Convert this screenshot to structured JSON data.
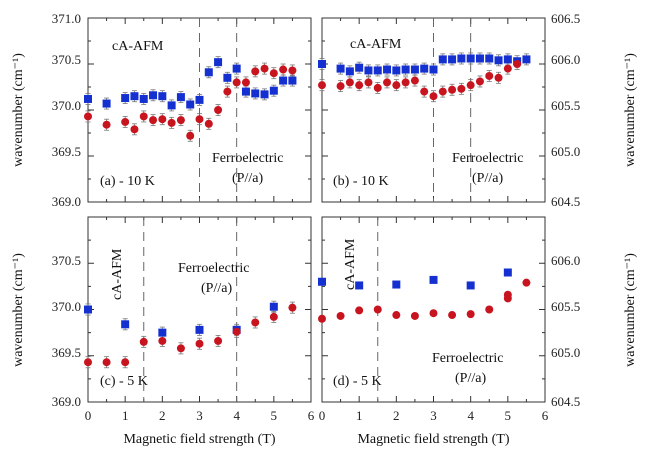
{
  "chart_data": {
    "type": "scatter",
    "xlabel": "Magnetic field strength (T)",
    "ylabel_left": "wavenumber (cm⁻¹)",
    "ylabel_right": "wavenumber (cm⁻¹)",
    "x_ticks": [
      "0",
      "1",
      "2",
      "3",
      "4",
      "5",
      "6"
    ],
    "left_y_ticks": [
      "371.0",
      "370.5",
      "370.0",
      "369.5",
      "369.0"
    ],
    "left_y_ticks_lower": [
      "370.5",
      "370.0",
      "369.5",
      "369.0"
    ],
    "right_y_ticks": [
      "606.5",
      "606.0",
      "605.5",
      "605.0",
      "604.5"
    ],
    "right_y_ticks_lower": [
      "606.0",
      "605.5",
      "605.0",
      "604.5"
    ],
    "colors": {
      "square": "#1530d0",
      "circle": "#c8141e",
      "axis": "#333333",
      "dash": "#666666"
    },
    "panels": [
      {
        "id": "a",
        "label": "(a) - 10 K",
        "xlim": [
          0,
          6
        ],
        "ylim": [
          369.0,
          371.0
        ],
        "annotations": [
          "cA-AFM",
          "Ferroelectric",
          "(P//a)"
        ],
        "dashed_x": [
          3.0,
          4.0
        ],
        "squares": [
          [
            0,
            370.12
          ],
          [
            0.5,
            370.07
          ],
          [
            1,
            370.13
          ],
          [
            1.25,
            370.15
          ],
          [
            1.5,
            370.12
          ],
          [
            1.75,
            370.16
          ],
          [
            2,
            370.15
          ],
          [
            2.25,
            370.05
          ],
          [
            2.5,
            370.14
          ],
          [
            2.75,
            370.06
          ],
          [
            3,
            370.11
          ],
          [
            3.25,
            370.41
          ],
          [
            3.5,
            370.52
          ],
          [
            3.75,
            370.35
          ],
          [
            4,
            370.45
          ],
          [
            4.25,
            370.2
          ],
          [
            4.5,
            370.18
          ],
          [
            4.75,
            370.17
          ],
          [
            5,
            370.21
          ],
          [
            5.25,
            370.32
          ],
          [
            5.5,
            370.32
          ]
        ],
        "circles": [
          [
            0,
            369.93
          ],
          [
            0.5,
            369.84
          ],
          [
            1,
            369.87
          ],
          [
            1.25,
            369.79
          ],
          [
            1.5,
            369.93
          ],
          [
            1.75,
            369.89
          ],
          [
            2,
            369.9
          ],
          [
            2.25,
            369.86
          ],
          [
            2.5,
            369.89
          ],
          [
            2.75,
            369.72
          ],
          [
            3,
            369.9
          ],
          [
            3.25,
            369.85
          ],
          [
            3.5,
            370.0
          ],
          [
            3.75,
            370.2
          ],
          [
            4,
            370.3
          ],
          [
            4.25,
            370.3
          ],
          [
            4.5,
            370.42
          ],
          [
            4.75,
            370.45
          ],
          [
            5,
            370.4
          ],
          [
            5.25,
            370.44
          ],
          [
            5.5,
            370.43
          ]
        ]
      },
      {
        "id": "b",
        "label": "(b) - 10 K",
        "xlim": [
          0,
          6
        ],
        "ylim": [
          604.5,
          606.5
        ],
        "annotations": [
          "cA-AFM",
          "Ferroelectric",
          "(P//a)"
        ],
        "dashed_x": [
          3.0,
          4.0
        ],
        "squares": [
          [
            0,
            606.0
          ],
          [
            0.5,
            605.95
          ],
          [
            0.75,
            605.92
          ],
          [
            1,
            605.96
          ],
          [
            1.25,
            605.93
          ],
          [
            1.5,
            605.93
          ],
          [
            1.75,
            605.94
          ],
          [
            2,
            605.93
          ],
          [
            2.25,
            605.94
          ],
          [
            2.5,
            605.94
          ],
          [
            2.75,
            605.95
          ],
          [
            3,
            605.94
          ],
          [
            3.25,
            606.05
          ],
          [
            3.5,
            606.05
          ],
          [
            3.75,
            606.06
          ],
          [
            4,
            606.06
          ],
          [
            4.25,
            606.06
          ],
          [
            4.5,
            606.06
          ],
          [
            4.75,
            606.04
          ],
          [
            5,
            606.05
          ],
          [
            5.25,
            606.03
          ],
          [
            5.5,
            606.05
          ]
        ],
        "circles": [
          [
            0,
            605.77
          ],
          [
            0.5,
            605.76
          ],
          [
            0.75,
            605.8
          ],
          [
            1,
            605.77
          ],
          [
            1.25,
            605.8
          ],
          [
            1.5,
            605.74
          ],
          [
            1.75,
            605.8
          ],
          [
            2,
            605.77
          ],
          [
            2.25,
            605.8
          ],
          [
            2.5,
            605.82
          ],
          [
            2.75,
            605.7
          ],
          [
            3,
            605.65
          ],
          [
            3.25,
            605.7
          ],
          [
            3.5,
            605.72
          ],
          [
            3.75,
            605.73
          ],
          [
            4,
            605.77
          ],
          [
            4.25,
            605.81
          ],
          [
            4.5,
            605.87
          ],
          [
            4.75,
            605.85
          ],
          [
            5,
            605.95
          ],
          [
            5.25,
            606.0
          ]
        ]
      },
      {
        "id": "c",
        "label": "(c) - 5 K",
        "xlim": [
          0,
          6
        ],
        "ylim": [
          369.0,
          371.0
        ],
        "annotations": [
          "cA-AFM",
          "Ferroelectric",
          "(P//a)"
        ],
        "dashed_x": [
          1.5,
          4.0
        ],
        "squares": [
          [
            0,
            370.0
          ],
          [
            1,
            369.84
          ],
          [
            2,
            369.75
          ],
          [
            3,
            369.78
          ],
          [
            4,
            369.78
          ],
          [
            5,
            370.03
          ]
        ],
        "circles": [
          [
            0,
            369.43
          ],
          [
            0.5,
            369.43
          ],
          [
            1,
            369.43
          ],
          [
            1.5,
            369.65
          ],
          [
            2,
            369.66
          ],
          [
            2.5,
            369.58
          ],
          [
            3,
            369.63
          ],
          [
            3.5,
            369.66
          ],
          [
            4,
            369.76
          ],
          [
            4.5,
            369.86
          ],
          [
            5,
            369.92
          ],
          [
            5.5,
            370.02
          ]
        ]
      },
      {
        "id": "d",
        "label": "(d) - 5 K",
        "xlim": [
          0,
          6
        ],
        "ylim": [
          604.5,
          606.5
        ],
        "annotations": [
          "cA-AFM",
          "Ferroelectric",
          "(P//a)"
        ],
        "dashed_x": [
          1.5
        ],
        "squares": [
          [
            0,
            605.8
          ],
          [
            1,
            605.76
          ],
          [
            2,
            605.77
          ],
          [
            3,
            605.82
          ],
          [
            4,
            605.76
          ],
          [
            5,
            605.9
          ]
        ],
        "circles": [
          [
            0,
            605.4
          ],
          [
            0.5,
            605.43
          ],
          [
            1,
            605.49
          ],
          [
            1.5,
            605.5
          ],
          [
            2,
            605.44
          ],
          [
            2.5,
            605.43
          ],
          [
            3,
            605.46
          ],
          [
            3.5,
            605.44
          ],
          [
            4,
            605.45
          ],
          [
            4.5,
            605.5
          ],
          [
            5,
            605.62
          ],
          [
            5,
            605.66
          ],
          [
            5.5,
            605.79
          ]
        ]
      }
    ]
  }
}
